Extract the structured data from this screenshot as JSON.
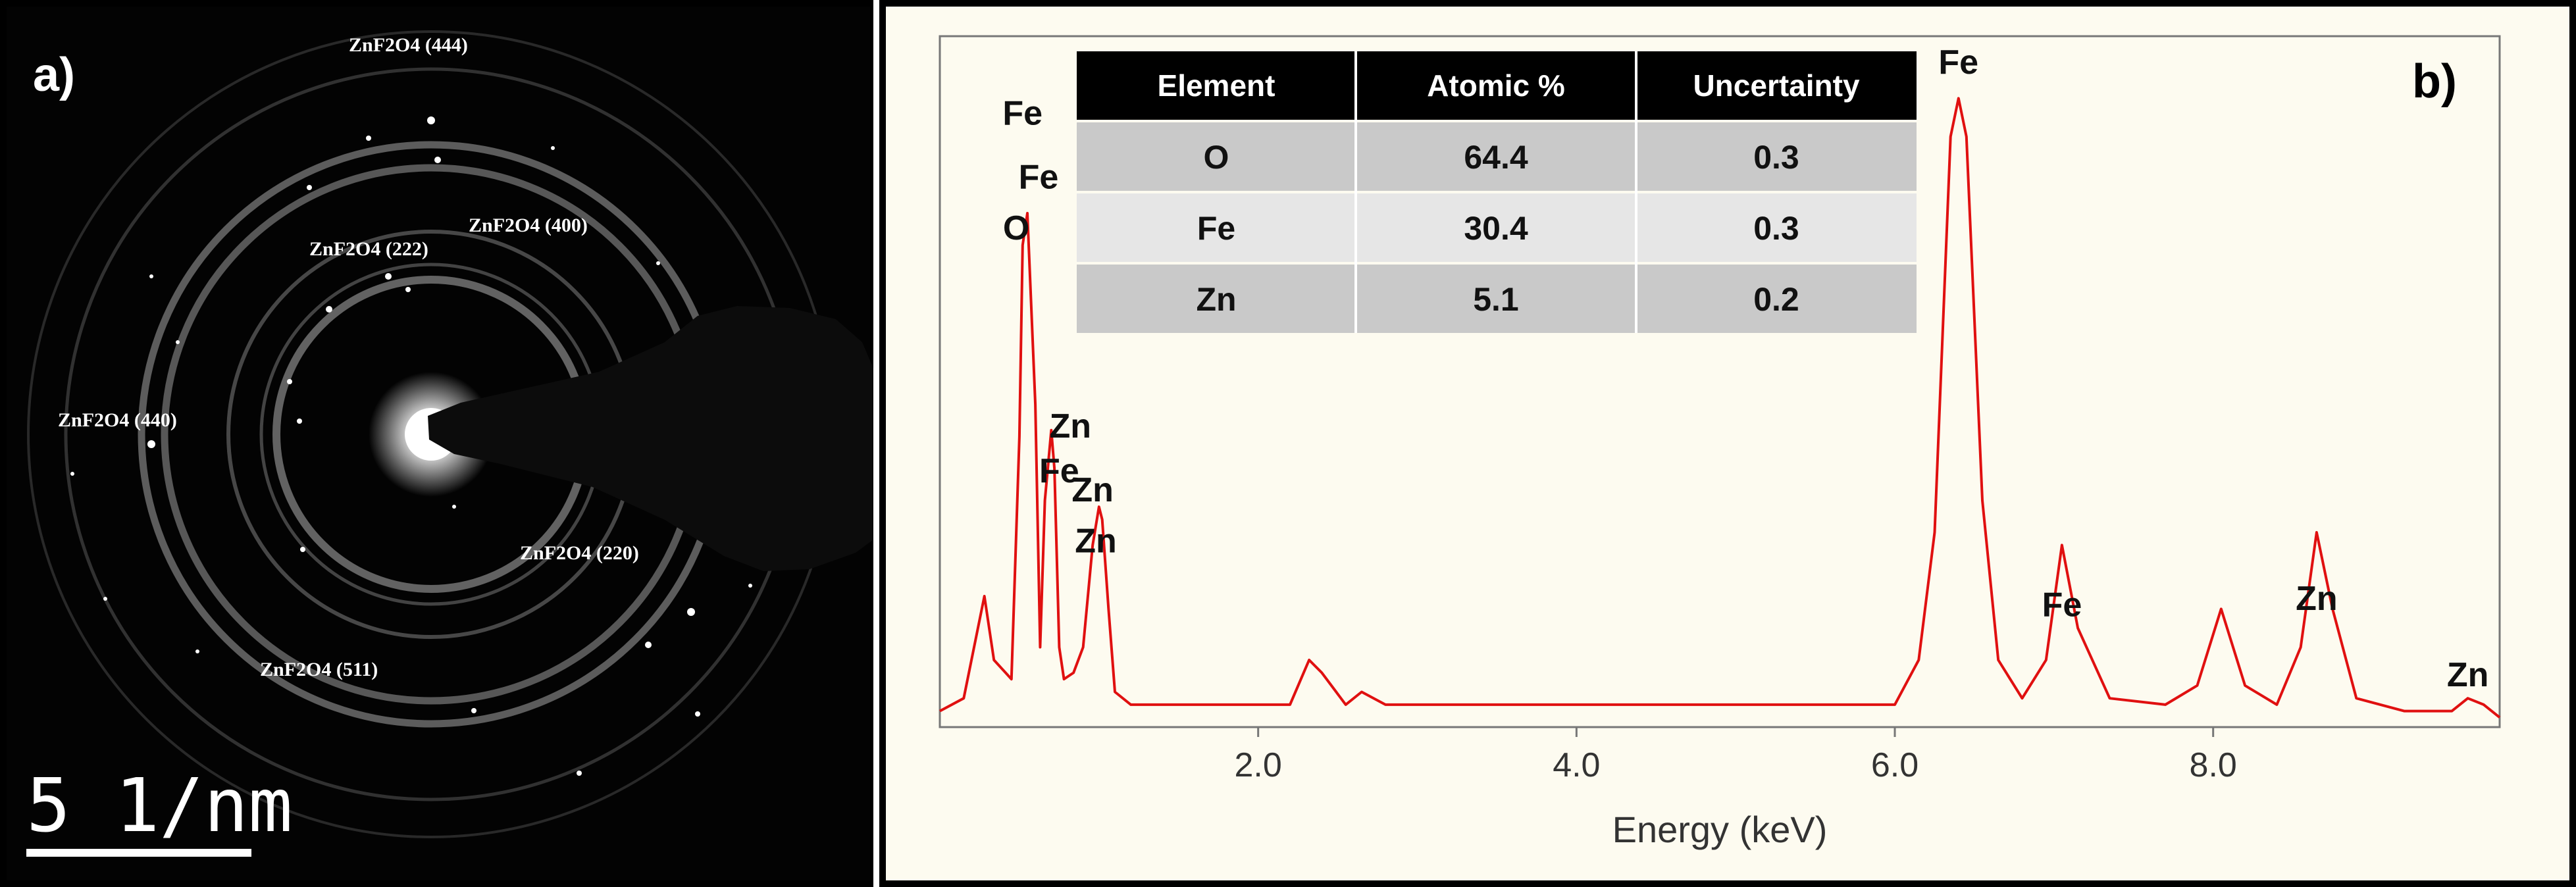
{
  "panel_a": {
    "label": "a)",
    "scale_bar_text": "5 1/nm",
    "ring_labels": [
      "ZnF2O4 (444)",
      "ZnF2O4 (400)",
      "ZnF2O4 (222)",
      "ZnF2O4 (440)",
      "ZnF2O4 (220)",
      "ZnF2O4 (511)"
    ]
  },
  "panel_b": {
    "label": "b)",
    "table": {
      "headers": [
        "Element",
        "Atomic %",
        "Uncertainty"
      ],
      "rows": [
        [
          "O",
          "64.4",
          "0.3"
        ],
        [
          "Fe",
          "30.4",
          "0.3"
        ],
        [
          "Zn",
          "5.1",
          "0.2"
        ]
      ]
    },
    "peak_labels": [
      "Fe",
      "Fe",
      "O",
      "Zn",
      "Fe",
      "Zn",
      "Zn",
      "Fe",
      "Fe",
      "Zn",
      "Zn"
    ]
  },
  "colors": {
    "spectrum_line": "#e01010",
    "plot_background": "#fdfbf0",
    "table_header": "#000000",
    "table_row_dark": "#c9c9c9",
    "table_row_light": "#e6e6e6"
  },
  "chart_data": {
    "type": "line",
    "title": "",
    "xlabel": "Energy (keV)",
    "ylabel": "",
    "xlim": [
      0.0,
      9.8
    ],
    "ylim": [
      0,
      100
    ],
    "xticks": [
      "2.0",
      "4.0",
      "6.0",
      "8.0"
    ],
    "grid": false,
    "series": [
      {
        "values_x": [
          0.0,
          0.15,
          0.28,
          0.34,
          0.45,
          0.5,
          0.52,
          0.55,
          0.6,
          0.63,
          0.66,
          0.7,
          0.72,
          0.75,
          0.78,
          0.84,
          0.9,
          0.96,
          1.0,
          1.02,
          1.06,
          1.1,
          1.2,
          1.4,
          1.8,
          2.2,
          2.32,
          2.4,
          2.55,
          2.65,
          2.8,
          3.5,
          4.5,
          5.5,
          6.0,
          6.15,
          6.25,
          6.35,
          6.4,
          6.45,
          6.55,
          6.65,
          6.8,
          6.95,
          7.05,
          7.15,
          7.35,
          7.7,
          7.9,
          8.05,
          8.2,
          8.4,
          8.55,
          8.65,
          8.75,
          8.9,
          9.2,
          9.5,
          9.6,
          9.7,
          9.8
        ],
        "values_y": [
          2,
          4,
          20,
          10,
          7,
          45,
          75,
          80,
          50,
          12,
          35,
          46,
          40,
          12,
          7,
          8,
          12,
          28,
          34,
          32,
          18,
          5,
          3,
          3,
          3,
          3,
          10,
          8,
          3,
          5,
          3,
          3,
          3,
          3,
          3,
          10,
          30,
          92,
          98,
          92,
          35,
          10,
          4,
          10,
          28,
          15,
          4,
          3,
          6,
          18,
          6,
          3,
          12,
          30,
          18,
          4,
          2,
          2,
          4,
          3,
          1
        ]
      }
    ],
    "annotations": [
      {
        "text": "Fe",
        "x": 0.52,
        "y": 92
      },
      {
        "text": "Fe",
        "x": 0.62,
        "y": 82
      },
      {
        "text": "O",
        "x": 0.48,
        "y": 74
      },
      {
        "text": "Zn",
        "x": 0.82,
        "y": 43
      },
      {
        "text": "Fe",
        "x": 0.75,
        "y": 36
      },
      {
        "text": "Zn",
        "x": 0.96,
        "y": 33
      },
      {
        "text": "Zn",
        "x": 0.98,
        "y": 25
      },
      {
        "text": "Fe",
        "x": 6.4,
        "y": 100
      },
      {
        "text": "Fe",
        "x": 7.05,
        "y": 15
      },
      {
        "text": "Zn",
        "x": 8.65,
        "y": 16
      },
      {
        "text": "Zn",
        "x": 9.6,
        "y": 4
      }
    ]
  }
}
